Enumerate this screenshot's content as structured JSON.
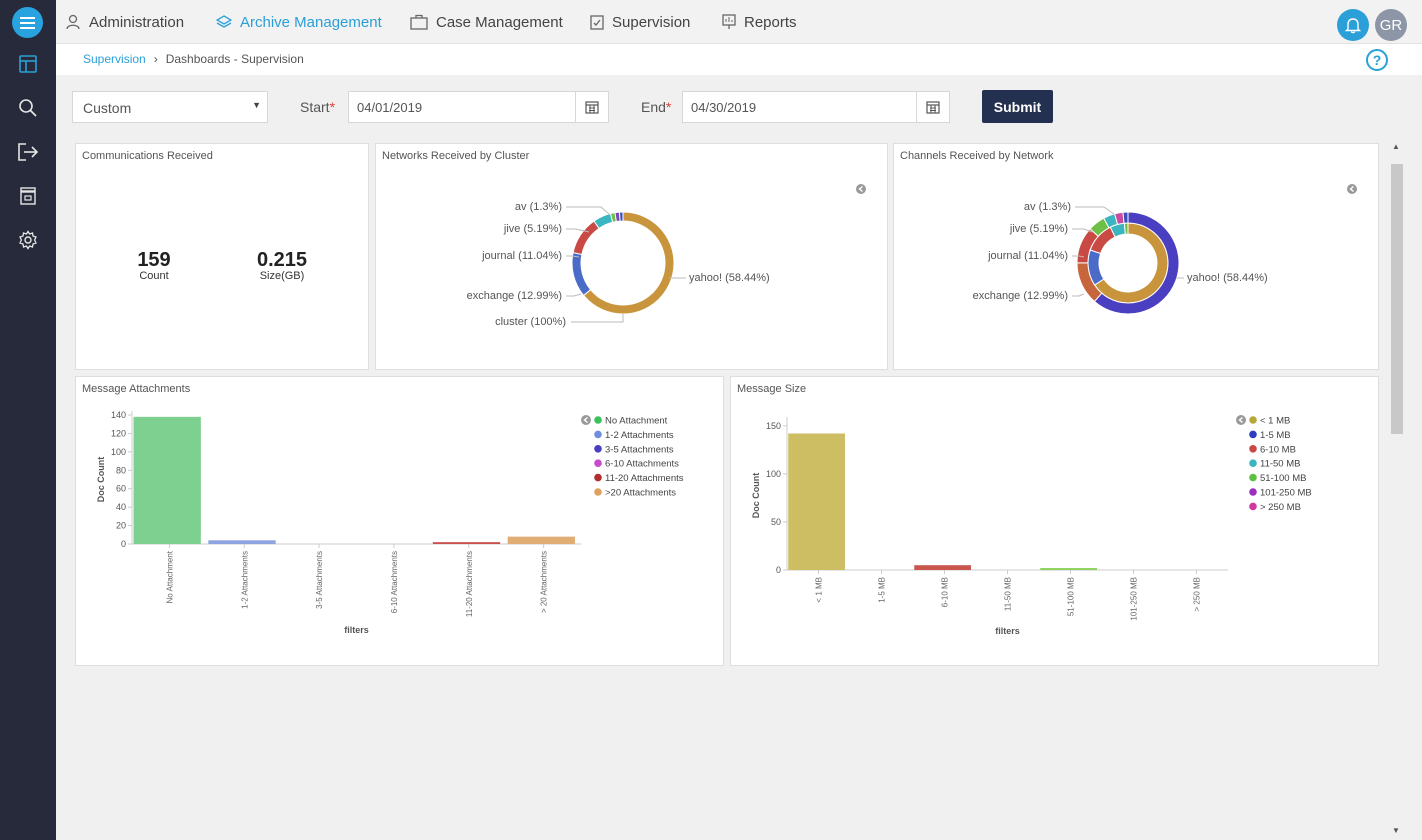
{
  "nav": {
    "items": [
      {
        "label": "Administration",
        "icon": "user-icon"
      },
      {
        "label": "Archive Management",
        "icon": "layers-icon"
      },
      {
        "label": "Case Management",
        "icon": "briefcase-icon"
      },
      {
        "label": "Supervision",
        "icon": "clipboard-check-icon"
      },
      {
        "label": "Reports",
        "icon": "presentation-icon"
      }
    ],
    "active": "Archive Management",
    "avatar_initials": "GR",
    "accent": "#2a9fd8"
  },
  "breadcrumb": {
    "root": "Supervision",
    "separator": "›",
    "current": "Dashboards - Supervision"
  },
  "filters": {
    "range_value": "Custom",
    "start_label": "Start",
    "start_value": "04/01/2019",
    "end_label": "End",
    "end_value": "04/30/2019",
    "required_mark": "*",
    "submit_label": "Submit"
  },
  "panels": {
    "communications": {
      "title": "Communications Received",
      "count_value": "159",
      "count_label": "Count",
      "size_value": "0.215",
      "size_label": "Size(GB)"
    },
    "networks": {
      "title": "Networks Received by Cluster"
    },
    "channels": {
      "title": "Channels Received by Network"
    },
    "attachments": {
      "title": "Message Attachments"
    },
    "size": {
      "title": "Message Size"
    }
  },
  "chart_data": [
    {
      "type": "pie",
      "title": "Networks Received by Cluster",
      "inner_ring": [
        {
          "label": "cluster (100%)",
          "value": 100,
          "color": "#3cc05c"
        }
      ],
      "outer_ring": [
        {
          "label": "yahoo! (58.44%)",
          "value": 58.44,
          "color": "#c9953c"
        },
        {
          "label": "exchange (12.99%)",
          "value": 12.99,
          "color": "#4a6cc8"
        },
        {
          "label": "journal (11.04%)",
          "value": 11.04,
          "color": "#c94a44"
        },
        {
          "label": "jive (5.19%)",
          "value": 5.19,
          "color": "#3bb5bf"
        },
        {
          "label": "av (1.3%)",
          "value": 1.3,
          "color": "#6dc045"
        },
        {
          "label": "",
          "value": 1.3,
          "color": "#7a49c0"
        },
        {
          "label": "",
          "value": 1.0,
          "color": "#3c4fb8"
        }
      ]
    },
    {
      "type": "pie",
      "title": "Channels Received by Network",
      "inner_ring": [
        {
          "label": "yahoo! (58.44%)",
          "value": 58.44,
          "color": "#c9953c"
        },
        {
          "label": "exchange (12.99%)",
          "value": 12.99,
          "color": "#4a6cc8"
        },
        {
          "label": "journal (11.04%)",
          "value": 11.04,
          "color": "#c94a44"
        },
        {
          "label": "jive (5.19%)",
          "value": 5.19,
          "color": "#3bb5bf"
        },
        {
          "label": "av (1.3%)",
          "value": 1.3,
          "color": "#6dc045"
        }
      ],
      "outer_ring": [
        {
          "label": "",
          "value": 58.44,
          "color": "#4a3fc0"
        },
        {
          "label": "",
          "value": 12.99,
          "color": "#c7653c"
        },
        {
          "label": "",
          "value": 11.04,
          "color": "#c94a44"
        },
        {
          "label": "",
          "value": 5.19,
          "color": "#6dc045"
        },
        {
          "label": "",
          "value": 3.5,
          "color": "#3bb5bf"
        },
        {
          "label": "",
          "value": 2.5,
          "color": "#c94a9f"
        },
        {
          "label": "",
          "value": 1.5,
          "color": "#3c4fb8"
        }
      ]
    },
    {
      "type": "bar",
      "title": "Message Attachments",
      "categories": [
        "No Attachment",
        "1-2 Attachments",
        "3-5 Attachments",
        "6-10 Attachments",
        "11-20 Attachments",
        "> 20 Attachments"
      ],
      "values": [
        138,
        4,
        0,
        0,
        2,
        8
      ],
      "colors": [
        "#7dd08f",
        "#8ea3e0",
        "#7d66d6",
        "#cc6fc9",
        "#c9504f",
        "#e0ae74"
      ],
      "legend": [
        "No Attachment",
        "1-2 Attachments",
        "3-5 Attachments",
        "6-10 Attachments",
        "11-20 Attachments",
        ">20 Attachments"
      ],
      "legend_colors": [
        "#3cc05c",
        "#6f8ee0",
        "#4a3fc0",
        "#c94acb",
        "#b22d2d",
        "#e0a060"
      ],
      "xlabel": "filters",
      "ylabel": "Doc Count",
      "yticks": [
        0,
        20,
        40,
        60,
        80,
        100,
        120,
        140
      ],
      "ylim": [
        0,
        140
      ],
      "legend_position": "top-right"
    },
    {
      "type": "bar",
      "title": "Message Size",
      "categories": [
        "< 1 MB",
        "1-5 MB",
        "6-10 MB",
        "11-50 MB",
        "51-100 MB",
        "101-250 MB",
        "> 250 MB"
      ],
      "values": [
        142,
        0,
        5,
        0,
        2,
        0,
        0
      ],
      "colors": [
        "#cdbd63",
        "#4a57c8",
        "#c9554f",
        "#3bb5bf",
        "#8ad05a",
        "#a24ac4",
        "#d04aa0"
      ],
      "legend": [
        "< 1 MB",
        "1-5 MB",
        "6-10 MB",
        "11-50 MB",
        "51-100 MB",
        "101-250 MB",
        "> 250 MB"
      ],
      "legend_colors": [
        "#b7a737",
        "#2d3dc0",
        "#c94a44",
        "#3bb5bf",
        "#5cc040",
        "#9a2fc0",
        "#d03aa0"
      ],
      "xlabel": "filters",
      "ylabel": "Doc Count",
      "yticks": [
        0,
        50,
        100,
        150
      ],
      "ylim": [
        0,
        155
      ],
      "legend_position": "top-right"
    }
  ]
}
